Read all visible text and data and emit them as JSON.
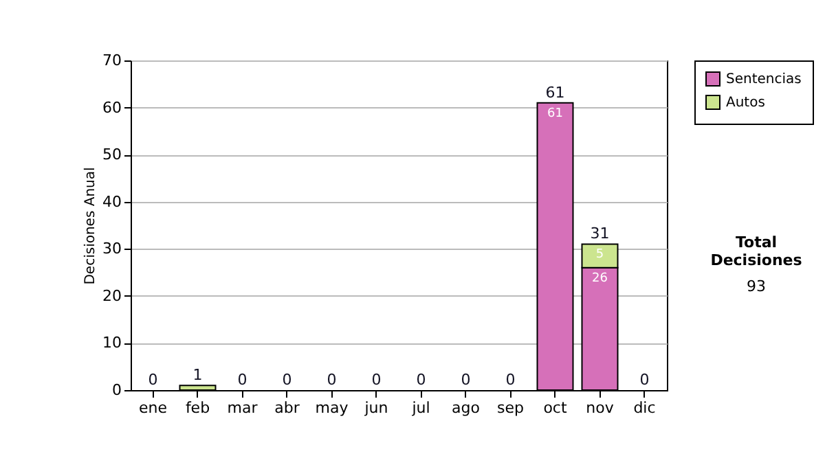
{
  "chart_data": {
    "type": "bar",
    "stacked": true,
    "ylabel": "Decisiones Anual",
    "categories": [
      "ene",
      "feb",
      "mar",
      "abr",
      "may",
      "jun",
      "jul",
      "ago",
      "sep",
      "oct",
      "nov",
      "dic"
    ],
    "series": [
      {
        "name": "Sentencias",
        "color": "#d670b9",
        "values": [
          0,
          0,
          0,
          0,
          0,
          0,
          0,
          0,
          0,
          61,
          26,
          0
        ],
        "value_labels": [
          null,
          null,
          null,
          null,
          null,
          null,
          null,
          null,
          null,
          "61",
          "26",
          null
        ]
      },
      {
        "name": "Autos",
        "color": "#cce58f",
        "values": [
          0,
          1,
          0,
          0,
          0,
          0,
          0,
          0,
          0,
          0,
          5,
          0
        ],
        "value_labels": [
          null,
          null,
          null,
          null,
          null,
          null,
          null,
          null,
          null,
          null,
          "5",
          null
        ]
      }
    ],
    "totals": [
      "0",
      "1",
      "0",
      "0",
      "0",
      "0",
      "0",
      "0",
      "0",
      "61",
      "31",
      "0"
    ],
    "ylim": [
      0,
      70
    ],
    "yticks": [
      0,
      10,
      20,
      30,
      40,
      50,
      60,
      70
    ],
    "grid": "y",
    "legend": "right",
    "annotations": [
      "Total Decisiones",
      "93"
    ]
  }
}
